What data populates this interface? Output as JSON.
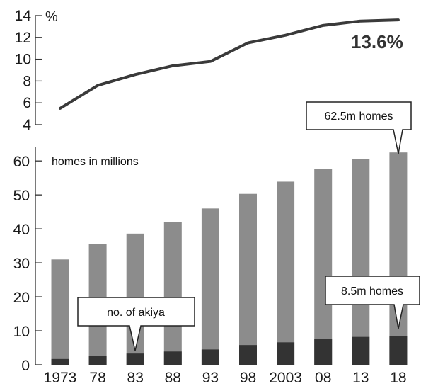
{
  "chart_data": [
    {
      "type": "line",
      "x": [
        "1973",
        "78",
        "83",
        "88",
        "93",
        "98",
        "2003",
        "08",
        "13",
        "18"
      ],
      "values": [
        5.5,
        7.6,
        8.6,
        9.4,
        9.8,
        11.5,
        12.2,
        13.1,
        13.5,
        13.6
      ],
      "yticks": [
        4,
        6,
        8,
        10,
        12,
        14
      ],
      "ylim": [
        4,
        14
      ],
      "unit": "%",
      "end_label": "13.6%"
    },
    {
      "type": "bar",
      "categories": [
        "1973",
        "78",
        "83",
        "88",
        "93",
        "98",
        "2003",
        "08",
        "13",
        "18"
      ],
      "series": [
        {
          "key": "homes",
          "values": [
            31.0,
            35.5,
            38.6,
            42.0,
            46.0,
            50.3,
            53.9,
            57.6,
            60.6,
            62.5
          ]
        },
        {
          "key": "akiya",
          "values": [
            1.7,
            2.7,
            3.3,
            3.9,
            4.5,
            5.8,
            6.6,
            7.6,
            8.2,
            8.5
          ]
        }
      ],
      "yticks": [
        0,
        10,
        20,
        30,
        40,
        50,
        60
      ],
      "ylim": [
        0,
        64
      ],
      "ylabel": "homes in millions",
      "colors": {
        "homes": "#8c8c8c",
        "akiya": "#333333",
        "line": "#3a3a3a"
      },
      "callouts": {
        "total": "62.5m homes",
        "akiya": "8.5m homes",
        "akiya_count": "no. of akiya"
      }
    }
  ]
}
